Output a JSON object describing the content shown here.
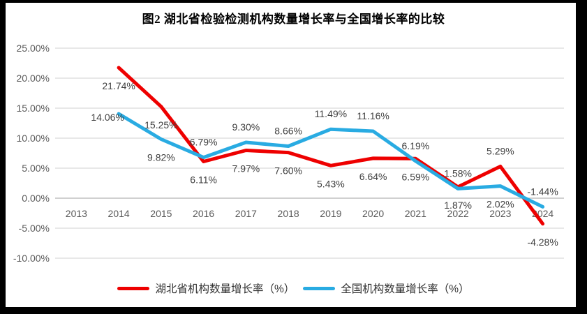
{
  "title": "图2  湖北省检验检测机构数量增长率与全国增长率的比较",
  "chart_data": {
    "type": "line",
    "title": "图2 湖北省检验检测机构数量增长率与全国增长率的比较",
    "categories": [
      "2013",
      "2014",
      "2015",
      "2016",
      "2017",
      "2018",
      "2019",
      "2020",
      "2021",
      "2022",
      "2023",
      "2024"
    ],
    "series": [
      {
        "name": "湖北省机构数量增长率（%）",
        "color": "#ee0000",
        "values": [
          null,
          21.74,
          15.25,
          6.11,
          7.97,
          7.6,
          5.43,
          6.64,
          6.59,
          1.87,
          5.29,
          -4.28
        ],
        "data_labels": [
          "",
          "21.74%",
          "15.25%",
          "6.11%",
          "7.97%",
          "7.60%",
          "5.43%",
          "6.64%",
          "6.59%",
          "1.87%",
          "5.29%",
          "-4.28%"
        ],
        "label_placement": [
          "",
          "below",
          "below",
          "below",
          "below",
          "below",
          "below",
          "below",
          "below",
          "below",
          "above",
          "below"
        ]
      },
      {
        "name": "全国机构数量增长率（%）",
        "color": "#29abe2",
        "values": [
          null,
          14.06,
          9.82,
          6.79,
          9.3,
          8.66,
          11.49,
          11.16,
          6.19,
          1.58,
          2.02,
          -1.44
        ],
        "data_labels": [
          "",
          "14.06%",
          "9.82%",
          "6.79%",
          "9.30%",
          "8.66%",
          "11.49%",
          "11.16%",
          "6.19%",
          "1.58%",
          "2.02%",
          "-1.44%"
        ],
        "label_placement": [
          "",
          "left",
          "below",
          "above",
          "above",
          "above",
          "above",
          "above",
          "above",
          "above",
          "below",
          "above"
        ]
      }
    ],
    "y_axis": {
      "min": -10,
      "max": 25,
      "step": 5,
      "tick_values": [
        25,
        20,
        15,
        10,
        5,
        0,
        -5,
        -10
      ],
      "tick_labels": [
        "25.00%",
        "20.00%",
        "15.00%",
        "10.00%",
        "5.00%",
        "0.00%",
        "-5.00%",
        "-10.00%"
      ]
    },
    "x_axis": {
      "labels_position": "next-to-zero-axis"
    },
    "grid": true,
    "legend_position": "bottom",
    "colors": {
      "gridline": "#d9d9d9",
      "zero_axis_line": "#b3b3b3",
      "axis_text": "#595959",
      "data_label_text": "#404040",
      "frame": "#000000",
      "background": "#ffffff"
    }
  }
}
